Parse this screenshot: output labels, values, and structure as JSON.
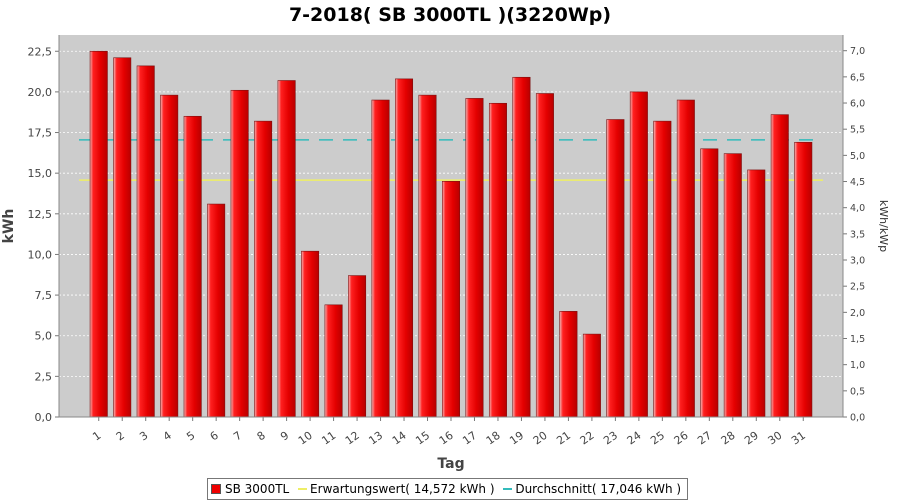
{
  "chart_data": {
    "type": "bar",
    "title": "7-2018( SB 3000TL )(3220Wp)",
    "xlabel": "Tag",
    "ylabel": "kWh",
    "y2label": "kWh/kWp",
    "categories": [
      "1",
      "2",
      "3",
      "4",
      "5",
      "6",
      "7",
      "8",
      "9",
      "10",
      "11",
      "12",
      "13",
      "14",
      "15",
      "16",
      "17",
      "18",
      "19",
      "20",
      "21",
      "22",
      "23",
      "24",
      "25",
      "26",
      "27",
      "28",
      "29",
      "30",
      "31"
    ],
    "series": [
      {
        "name": "SB 3000TL",
        "color": "#ee0000",
        "values": [
          22.5,
          22.1,
          21.6,
          19.8,
          18.5,
          13.1,
          20.1,
          18.2,
          20.7,
          10.2,
          6.9,
          8.7,
          19.5,
          20.8,
          19.8,
          14.5,
          19.6,
          19.3,
          20.9,
          19.9,
          6.5,
          5.1,
          18.3,
          20.0,
          18.2,
          19.5,
          16.5,
          16.2,
          15.2,
          18.6,
          16.9
        ]
      }
    ],
    "reference_lines": [
      {
        "name": "Erwartungswert",
        "value": 14.572,
        "color": "#eeee66",
        "style": "solid"
      },
      {
        "name": "Durchschnitt",
        "value": 17.046,
        "color": "#33bbbb",
        "style": "dashed"
      }
    ],
    "ylim": [
      0,
      23.5
    ],
    "yticks": [
      "0,0",
      "2,5",
      "5,0",
      "7,5",
      "10,0",
      "12,5",
      "15,0",
      "17,5",
      "20,0",
      "22,5"
    ],
    "y2lim": [
      0,
      7.3
    ],
    "y2ticks": [
      "0,0",
      "0,5",
      "1,0",
      "1,5",
      "2,0",
      "2,5",
      "3,0",
      "3,5",
      "4,0",
      "4,5",
      "5,0",
      "5,5",
      "6,0",
      "6,5",
      "7,0"
    ],
    "grid": true,
    "legend_position": "bottom",
    "plot_background": "#cccccc"
  },
  "legend": {
    "items": [
      {
        "label": "SB 3000TL"
      },
      {
        "label": "Erwartungswert( 14,572 kWh )"
      },
      {
        "label": "Durchschnitt( 17,046 kWh )"
      }
    ]
  }
}
